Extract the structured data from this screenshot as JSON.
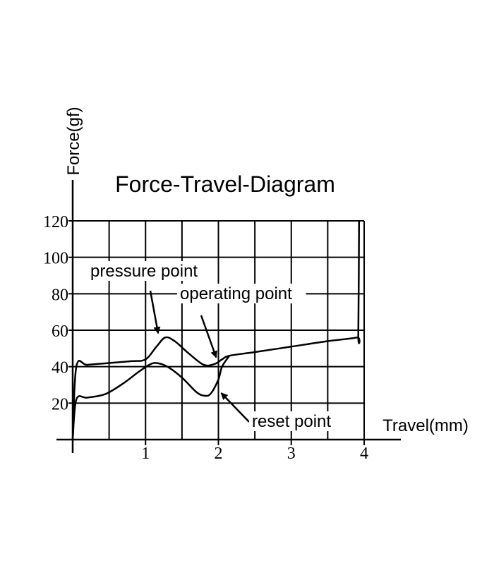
{
  "chart_data": {
    "type": "line",
    "title": "Force-Travel-Diagram",
    "xlabel": "Travel(mm)",
    "ylabel": "Force(gf)",
    "xlim": [
      0,
      4
    ],
    "ylim": [
      0,
      120
    ],
    "x_ticks": [
      1,
      2,
      3,
      4
    ],
    "y_ticks": [
      20,
      40,
      60,
      80,
      100,
      120
    ],
    "grid": true,
    "series": [
      {
        "x": [
          0,
          0.05,
          0.2,
          0.5,
          0.8,
          1.0,
          1.15,
          1.27,
          1.4,
          1.6,
          1.8,
          1.95,
          2.05,
          2.15,
          2.5,
          3.0,
          3.5,
          3.9,
          3.92,
          3.93
        ],
        "y": [
          0,
          40,
          41,
          42,
          43,
          44,
          51,
          56,
          54,
          47,
          41,
          41.5,
          44,
          46,
          48,
          51,
          54,
          56,
          58,
          120
        ]
      },
      {
        "x": [
          0,
          0.05,
          0.2,
          0.45,
          0.7,
          0.9,
          1.05,
          1.15,
          1.3,
          1.5,
          1.7,
          1.82,
          1.9,
          2.0,
          2.05,
          2.15
        ],
        "y": [
          0,
          22,
          23,
          25,
          31,
          37,
          41,
          42,
          40,
          34,
          26,
          24,
          25.5,
          33,
          40,
          46
        ]
      }
    ],
    "annotations": [
      {
        "text": "pressure point",
        "x": 1.25,
        "y": 56
      },
      {
        "text": "operating point",
        "x": 1.95,
        "y": 42
      },
      {
        "text": "reset point",
        "x": 2.0,
        "y": 24
      }
    ]
  }
}
